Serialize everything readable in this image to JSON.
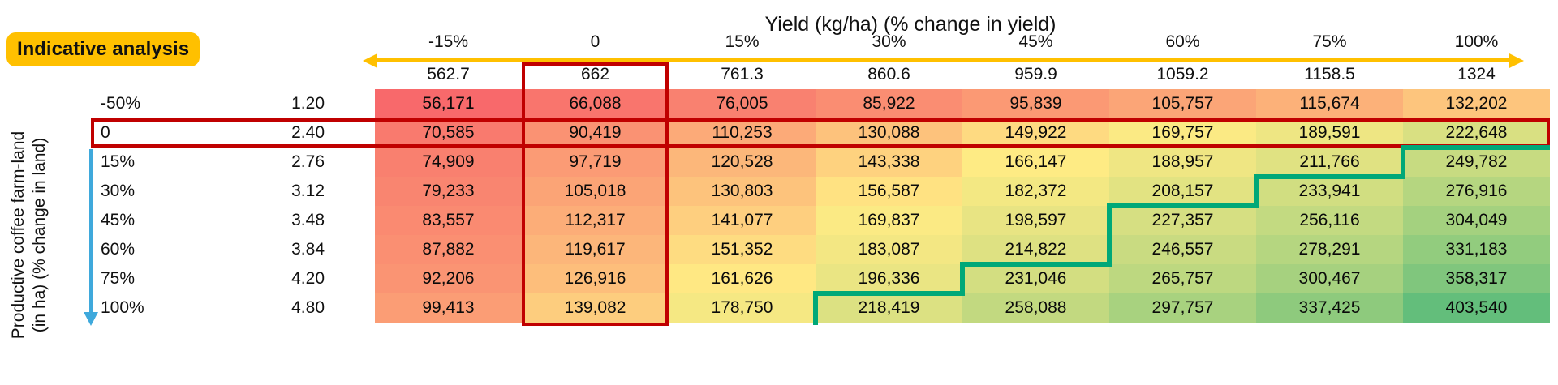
{
  "badge": {
    "label": "Indicative analysis"
  },
  "title": "Yield (kg/ha) (% change in yield)",
  "y_axis_label": {
    "line1": "Productive coffee farm-land",
    "line2": "(in ha) (% change in land)"
  },
  "columns": {
    "pct_change": [
      "-15%",
      "0",
      "15%",
      "30%",
      "45%",
      "60%",
      "75%",
      "100%"
    ],
    "yield_kg_ha": [
      "562.7",
      "662",
      "761.3",
      "860.6",
      "959.9",
      "1059.2",
      "1158.5",
      "1324"
    ]
  },
  "rows": {
    "pct_change": [
      "-50%",
      "0",
      "15%",
      "30%",
      "45%",
      "60%",
      "75%",
      "100%"
    ],
    "land_ha": [
      "1.20",
      "2.40",
      "2.76",
      "3.12",
      "3.48",
      "3.84",
      "4.20",
      "4.80"
    ]
  },
  "colors": {
    "badge_bg": "#FFC000",
    "x_arrow": "#FFC000",
    "y_arrow": "#3FA9DC",
    "highlight_box": "#C00000",
    "step_line": "#00A878",
    "scale_min": "#F8696B",
    "scale_mid": "#FFEB84",
    "scale_max": "#63BE7B"
  },
  "chart_data": {
    "type": "heatmap",
    "title": "Yield (kg/ha) (% change in yield)",
    "x_axis": {
      "label": "Yield (kg/ha) (% change in yield)",
      "categories_pct": [
        "-15%",
        "0",
        "15%",
        "30%",
        "45%",
        "60%",
        "75%",
        "100%"
      ],
      "values_kg_ha": [
        562.7,
        662,
        761.3,
        860.6,
        959.9,
        1059.2,
        1158.5,
        1324
      ]
    },
    "y_axis": {
      "label": "Productive coffee farm-land (in ha) (% change in land)",
      "categories_pct": [
        "-50%",
        "0",
        "15%",
        "30%",
        "45%",
        "60%",
        "75%",
        "100%"
      ],
      "values_ha": [
        1.2,
        2.4,
        2.76,
        3.12,
        3.48,
        3.84,
        4.2,
        4.8
      ]
    },
    "matrix_rows_by_land": [
      [
        56171,
        66088,
        76005,
        85922,
        95839,
        105757,
        115674,
        132202
      ],
      [
        70585,
        90419,
        110253,
        130088,
        149922,
        169757,
        189591,
        222648
      ],
      [
        74909,
        97719,
        120528,
        143338,
        166147,
        188957,
        211766,
        249782
      ],
      [
        79233,
        105018,
        130803,
        156587,
        182372,
        208157,
        233941,
        276916
      ],
      [
        83557,
        112317,
        141077,
        169837,
        198597,
        227357,
        256116,
        304049
      ],
      [
        87882,
        119617,
        151352,
        183087,
        214822,
        246557,
        278291,
        331183
      ],
      [
        92206,
        126916,
        161626,
        196336,
        231046,
        265757,
        300467,
        358317
      ],
      [
        99413,
        139082,
        178750,
        218419,
        258088,
        297757,
        337425,
        403540
      ]
    ],
    "color_scale": {
      "min_color": "#F8696B",
      "mid_color": "#FFEB84",
      "max_color": "#63BE7B",
      "mid_rule": "50th-percentile"
    },
    "highlights": {
      "base_case_column": {
        "header": "0",
        "yield_kg_ha": 662
      },
      "base_case_row": {
        "header": "0",
        "land_ha": 2.4
      },
      "box_color": "#C00000",
      "step_line_color": "#00A878",
      "step_line_points_grid_units": [
        [
          8,
          2
        ],
        [
          7,
          2
        ],
        [
          7,
          3
        ],
        [
          6,
          3
        ],
        [
          6,
          4
        ],
        [
          5,
          4
        ],
        [
          5,
          6
        ],
        [
          4,
          6
        ],
        [
          4,
          7
        ],
        [
          3,
          7
        ],
        [
          3,
          8
        ]
      ]
    },
    "legend_position": "none",
    "grid": "off"
  }
}
